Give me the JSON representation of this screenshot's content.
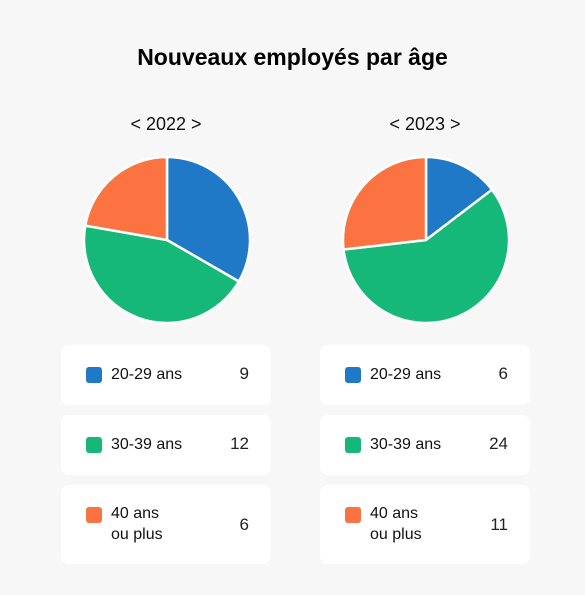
{
  "title": "Nouveaux employés par âge",
  "colors": {
    "c20": "#2079c7",
    "c30": "#16b87a",
    "c40": "#fb7340"
  },
  "chart_data": [
    {
      "type": "pie",
      "title": "< 2022 >",
      "categories": [
        "20-29 ans",
        "30-39 ans",
        "40 ans\nou plus"
      ],
      "values": [
        9,
        12,
        6
      ]
    },
    {
      "type": "pie",
      "title": "< 2023 >",
      "categories": [
        "20-29 ans",
        "30-39 ans",
        "40 ans\nou plus"
      ],
      "values": [
        6,
        24,
        11
      ]
    }
  ]
}
